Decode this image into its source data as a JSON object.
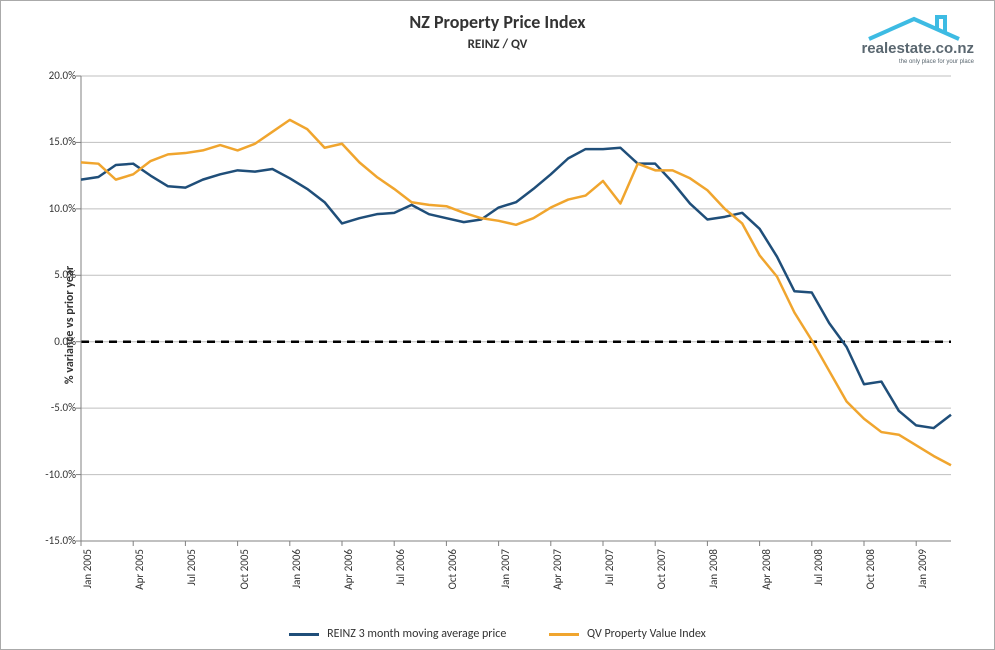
{
  "chart": {
    "type": "line",
    "title": "NZ Property Price Index",
    "title_fontsize": 18,
    "subtitle": "REINZ / QV",
    "subtitle_fontsize": 13,
    "y_axis_label": "% variance vs prior year",
    "background_color": "#ffffff",
    "grid_color": "#bfbfbf",
    "axis_color": "#808080",
    "text_color": "#333333",
    "line_width": 2.5,
    "zero_line_color": "#000000",
    "zero_line_dash": "8,6",
    "ylim": [
      -15.0,
      20.0
    ],
    "ytick_step": 5.0,
    "y_ticks": [
      -15.0,
      -10.0,
      -5.0,
      0.0,
      5.0,
      10.0,
      15.0,
      20.0
    ],
    "y_tick_format": "percent_1dp",
    "x_categories": [
      "Jan 2005",
      "Feb 2005",
      "Mar 2005",
      "Apr 2005",
      "May 2005",
      "Jun 2005",
      "Jul 2005",
      "Aug 2005",
      "Sep 2005",
      "Oct 2005",
      "Nov 2005",
      "Dec 2005",
      "Jan 2006",
      "Feb 2006",
      "Mar 2006",
      "Apr 2006",
      "May 2006",
      "Jun 2006",
      "Jul 2006",
      "Aug 2006",
      "Sep 2006",
      "Oct 2006",
      "Nov 2006",
      "Dec 2006",
      "Jan 2007",
      "Feb 2007",
      "Mar 2007",
      "Apr 2007",
      "May 2007",
      "Jun 2007",
      "Jul 2007",
      "Aug 2007",
      "Sep 2007",
      "Oct 2007",
      "Nov 2007",
      "Dec 2007",
      "Jan 2008",
      "Feb 2008",
      "Mar 2008",
      "Apr 2008",
      "May 2008",
      "Jun 2008",
      "Jul 2008",
      "Aug 2008",
      "Sep 2008",
      "Oct 2008",
      "Nov 2008",
      "Dec 2008",
      "Jan 2009",
      "Feb 2009",
      "Mar 2009"
    ],
    "x_tick_labels": [
      "Jan 2005",
      "Apr 2005",
      "Jul 2005",
      "Oct 2005",
      "Jan 2006",
      "Apr 2006",
      "Jul 2006",
      "Oct 2006",
      "Jan 2007",
      "Apr 2007",
      "Jul 2007",
      "Oct 2007",
      "Jan 2008",
      "Apr 2008",
      "Jul 2008",
      "Oct 2008",
      "Jan 2009"
    ],
    "x_tick_indices": [
      0,
      3,
      6,
      9,
      12,
      15,
      18,
      21,
      24,
      27,
      30,
      33,
      36,
      39,
      42,
      45,
      48
    ],
    "series": [
      {
        "name": "REINZ 3 month moving average price",
        "color": "#1f4e79",
        "values": [
          12.2,
          12.4,
          13.3,
          13.4,
          12.5,
          11.7,
          11.6,
          12.2,
          12.6,
          12.9,
          12.8,
          13.0,
          12.3,
          11.5,
          10.5,
          8.9,
          9.3,
          9.6,
          9.7,
          10.3,
          9.6,
          9.3,
          9.0,
          9.2,
          10.1,
          10.5,
          11.5,
          12.6,
          13.8,
          14.5,
          14.5,
          14.6,
          13.4,
          13.4,
          12.0,
          10.4,
          9.2,
          9.4,
          9.7,
          8.5,
          6.4,
          3.8,
          3.7,
          1.4,
          -0.4,
          -3.2,
          -3.0,
          -5.2,
          -6.3,
          -6.5,
          -5.5
        ]
      },
      {
        "name": "QV Property Value Index",
        "color": "#f0a52e",
        "values": [
          13.5,
          13.4,
          12.2,
          12.6,
          13.6,
          14.1,
          14.2,
          14.4,
          14.8,
          14.4,
          14.9,
          15.8,
          16.7,
          16.0,
          14.6,
          14.9,
          13.5,
          12.4,
          11.5,
          10.5,
          10.3,
          10.2,
          9.7,
          9.3,
          9.1,
          8.8,
          9.3,
          10.1,
          10.7,
          11.0,
          12.1,
          10.4,
          13.4,
          12.9,
          12.9,
          12.3,
          11.4,
          10.0,
          8.9,
          6.5,
          4.9,
          2.2,
          0.1,
          -2.2,
          -4.5,
          -5.8,
          -6.8,
          -7.0,
          -7.8,
          -8.6,
          -9.3
        ]
      }
    ]
  },
  "legend": {
    "items": [
      {
        "label": "REINZ 3 month moving average price",
        "color": "#1f4e79"
      },
      {
        "label": "QV Property Value Index",
        "color": "#f0a52e"
      }
    ]
  },
  "logo": {
    "name": "realestate.co.nz",
    "tagline": "the only place for your place",
    "roof_color": "#3dbbe3",
    "text_color": "#5a6770"
  }
}
